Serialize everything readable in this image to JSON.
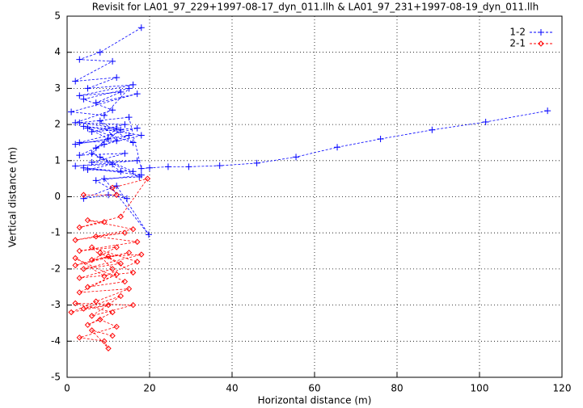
{
  "chart_data": {
    "type": "line",
    "title": "Revisit for LA01_97_229+1997-08-17_dyn_011.llh & LA01_97_231+1997-08-19_dyn_011.llh",
    "x_label": "Horizontal distance (m)",
    "y_label": "Vertical distance (m)",
    "xlim": [
      0,
      120
    ],
    "xticks": [
      0,
      20,
      40,
      60,
      80,
      100,
      120
    ],
    "ylim": [
      -5,
      5
    ],
    "yticks": [
      -5,
      -4,
      -3,
      -2,
      -1,
      0,
      1,
      2,
      3,
      4,
      5
    ],
    "grid": true,
    "legend": "top-right",
    "series": [
      {
        "name": "1-2",
        "color": "#0000ff",
        "marker": "plus",
        "x": [
          18,
          8,
          3,
          11,
          2,
          12,
          5,
          16,
          3,
          13,
          7,
          17,
          1,
          9,
          15,
          4,
          11,
          2,
          14,
          6,
          17,
          3,
          12,
          8,
          16,
          5,
          10,
          2,
          15,
          7,
          13,
          4,
          18,
          9,
          3,
          14,
          6,
          17,
          2,
          11,
          5,
          16,
          8,
          13,
          4,
          18,
          7,
          14.5,
          10,
          4,
          12,
          19.8,
          9,
          17.5,
          6,
          12,
          3,
          15,
          18,
          20,
          24.5,
          29.5,
          37,
          46,
          55.5,
          65.5,
          76,
          88.5,
          101.5,
          116.5
        ],
        "values": [
          4.68,
          4.0,
          3.8,
          3.75,
          3.2,
          3.3,
          3.0,
          3.1,
          2.8,
          2.9,
          2.6,
          2.85,
          2.35,
          2.25,
          3.0,
          2.7,
          2.4,
          2.05,
          2.0,
          1.8,
          1.9,
          1.5,
          1.55,
          2.1,
          1.5,
          1.9,
          1.6,
          1.45,
          1.7,
          1.35,
          1.85,
          1.95,
          1.7,
          1.45,
          1.15,
          1.2,
          0.95,
          1.0,
          0.85,
          0.9,
          0.75,
          0.7,
          1.1,
          0.7,
          0.8,
          0.6,
          0.45,
          -0.05,
          0.05,
          -0.05,
          0.3,
          -1.05,
          0.5,
          0.55,
          1.2,
          1.9,
          2.05,
          2.2,
          0.78,
          0.8,
          0.83,
          0.83,
          0.86,
          0.93,
          1.1,
          1.37,
          1.6,
          1.85,
          2.07,
          2.38
        ]
      },
      {
        "name": "2-1",
        "color": "#ff0000",
        "marker": "diamond",
        "x": [
          4,
          12,
          11,
          19.5,
          13,
          3,
          9,
          5,
          16,
          2,
          14,
          7,
          17,
          3,
          12,
          6,
          15,
          2,
          10,
          18,
          4,
          13,
          8,
          16,
          3,
          11,
          6,
          17,
          9,
          2,
          14,
          5,
          12,
          3,
          15,
          7,
          1,
          10,
          4,
          13,
          6,
          16,
          2,
          11,
          5,
          8,
          12,
          3,
          9,
          10,
          6,
          11
        ],
        "values": [
          0.05,
          0.05,
          0.25,
          0.5,
          -0.55,
          -0.85,
          -0.7,
          -0.65,
          -0.9,
          -1.2,
          -1.0,
          -1.1,
          -1.25,
          -1.5,
          -1.4,
          -1.75,
          -1.55,
          -1.9,
          -1.65,
          -1.6,
          -2.0,
          -1.85,
          -1.55,
          -2.1,
          -2.25,
          -2.0,
          -1.4,
          -1.8,
          -2.2,
          -1.7,
          -2.35,
          -2.5,
          -2.15,
          -2.65,
          -2.55,
          -2.9,
          -3.2,
          -3.0,
          -3.1,
          -2.75,
          -3.3,
          -3.0,
          -2.95,
          -3.2,
          -3.55,
          -3.4,
          -3.6,
          -3.9,
          -4.0,
          -4.2,
          -3.7,
          -3.85
        ]
      }
    ]
  }
}
